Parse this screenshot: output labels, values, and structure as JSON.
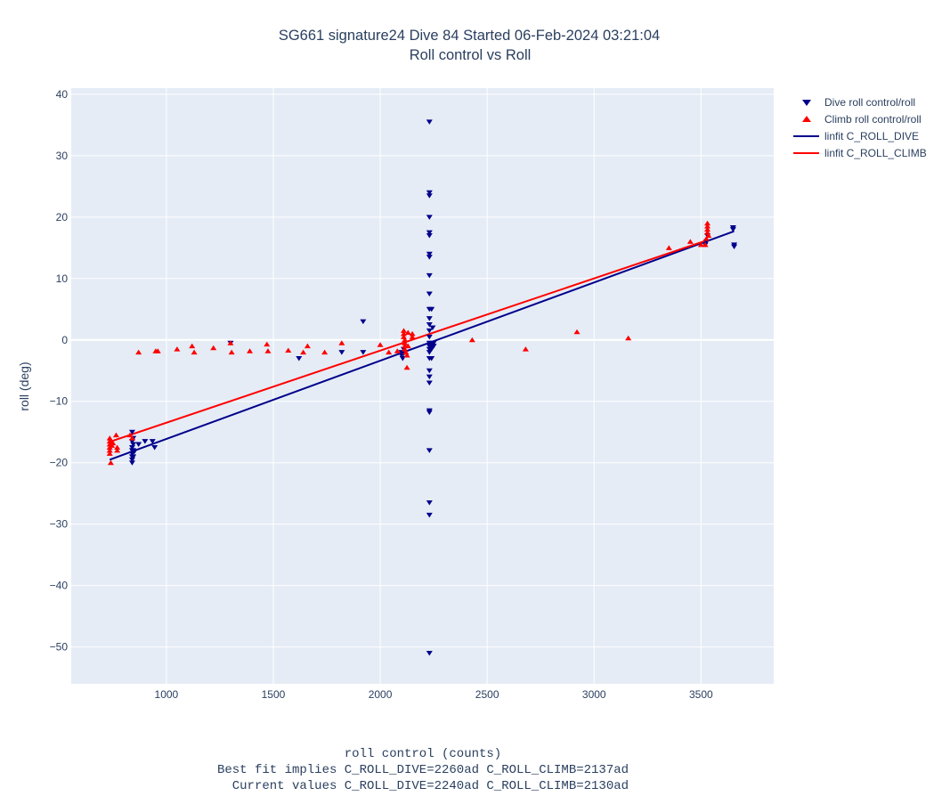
{
  "chart_data": {
    "type": "scatter",
    "title_lines": [
      "SG661 signature24 Dive 84 Started 06-Feb-2024 03:21:04",
      "Roll control vs Roll"
    ],
    "xlabel_lines": [
      "roll control (counts)",
      "Best fit implies C_ROLL_DIVE=2260ad C_ROLL_CLIMB=2137ad",
      "  Current values C_ROLL_DIVE=2240ad C_ROLL_CLIMB=2130ad"
    ],
    "ylabel": "roll (deg)",
    "xlim": [
      555,
      3840
    ],
    "ylim": [
      -56,
      41
    ],
    "xticks": [
      1000,
      1500,
      2000,
      2500,
      3000,
      3500
    ],
    "yticks": [
      40,
      30,
      20,
      10,
      0,
      -10,
      -20,
      -30,
      -40,
      -50
    ],
    "grid": true,
    "legend_position": "top-right-outside",
    "series": [
      {
        "name": "Dive roll control/roll",
        "mode": "markers",
        "marker": "triangle-down",
        "color": "#00008b",
        "points": [
          [
            840,
            -15
          ],
          [
            840,
            -16.5
          ],
          [
            840,
            -17.5
          ],
          [
            840,
            -18
          ],
          [
            840,
            -18.5
          ],
          [
            840,
            -19
          ],
          [
            840,
            -19.5
          ],
          [
            840,
            -20
          ],
          [
            845,
            -16
          ],
          [
            845,
            -17
          ],
          [
            845,
            -18
          ],
          [
            845,
            -19
          ],
          [
            850,
            -18.2
          ],
          [
            870,
            -17
          ],
          [
            900,
            -16.5
          ],
          [
            935,
            -16.5
          ],
          [
            945,
            -17.5
          ],
          [
            1300,
            -0.5
          ],
          [
            1620,
            -3
          ],
          [
            1820,
            -2
          ],
          [
            1920,
            3
          ],
          [
            1920,
            -2
          ],
          [
            2100,
            -2
          ],
          [
            2100,
            -2.5
          ],
          [
            2105,
            -3
          ],
          [
            2110,
            -1.5
          ],
          [
            2110,
            -2.2
          ],
          [
            2230,
            35.5
          ],
          [
            2230,
            24
          ],
          [
            2230,
            23.5
          ],
          [
            2230,
            20
          ],
          [
            2230,
            17.5
          ],
          [
            2230,
            17
          ],
          [
            2230,
            14
          ],
          [
            2230,
            13.5
          ],
          [
            2230,
            10.5
          ],
          [
            2230,
            7.5
          ],
          [
            2230,
            5
          ],
          [
            2230,
            3.5
          ],
          [
            2230,
            2.5
          ],
          [
            2230,
            1.5
          ],
          [
            2230,
            0.5
          ],
          [
            2230,
            -0.5
          ],
          [
            2230,
            -1
          ],
          [
            2230,
            -1.5
          ],
          [
            2230,
            -2
          ],
          [
            2230,
            -3
          ],
          [
            2230,
            -5
          ],
          [
            2230,
            -6
          ],
          [
            2230,
            -7
          ],
          [
            2230,
            -11.5
          ],
          [
            2230,
            -11.8
          ],
          [
            2230,
            -18
          ],
          [
            2230,
            -26.5
          ],
          [
            2230,
            -28.5
          ],
          [
            2230,
            -51
          ],
          [
            2240,
            -1
          ],
          [
            2240,
            -0.5
          ],
          [
            2240,
            -1.5
          ],
          [
            2240,
            -3
          ],
          [
            2240,
            5
          ],
          [
            2245,
            2
          ],
          [
            2250,
            -0.5
          ],
          [
            2250,
            -1
          ],
          [
            3520,
            15.5
          ],
          [
            3525,
            16
          ],
          [
            3530,
            17
          ],
          [
            3650,
            18
          ],
          [
            3650,
            18.3
          ],
          [
            3655,
            15.5
          ],
          [
            3655,
            15.2
          ]
        ]
      },
      {
        "name": "Climb roll control/roll",
        "mode": "markers",
        "marker": "triangle-up",
        "color": "#ff0000",
        "points": [
          [
            735,
            -16
          ],
          [
            735,
            -16.5
          ],
          [
            735,
            -17
          ],
          [
            735,
            -17.5
          ],
          [
            735,
            -18
          ],
          [
            735,
            -18.5
          ],
          [
            740,
            -20
          ],
          [
            745,
            -17.2
          ],
          [
            750,
            -16.8
          ],
          [
            765,
            -15.5
          ],
          [
            770,
            -17.5
          ],
          [
            770,
            -18
          ],
          [
            830,
            -15.5
          ],
          [
            840,
            -16
          ],
          [
            870,
            -2
          ],
          [
            950,
            -1.8
          ],
          [
            960,
            -1.8
          ],
          [
            1050,
            -1.5
          ],
          [
            1120,
            -1
          ],
          [
            1130,
            -2
          ],
          [
            1220,
            -1.3
          ],
          [
            1300,
            -0.5
          ],
          [
            1305,
            -2
          ],
          [
            1390,
            -1.8
          ],
          [
            1470,
            -0.7
          ],
          [
            1475,
            -1.8
          ],
          [
            1570,
            -1.7
          ],
          [
            1640,
            -2
          ],
          [
            1660,
            -1
          ],
          [
            1740,
            -2
          ],
          [
            1820,
            -0.5
          ],
          [
            2000,
            -0.8
          ],
          [
            2040,
            -2
          ],
          [
            2080,
            -1.8
          ],
          [
            2110,
            1.5
          ],
          [
            2110,
            1
          ],
          [
            2110,
            0.5
          ],
          [
            2115,
            0
          ],
          [
            2115,
            -0.5
          ],
          [
            2115,
            -1
          ],
          [
            2115,
            -1.5
          ],
          [
            2120,
            -2
          ],
          [
            2125,
            -2.5
          ],
          [
            2125,
            -4.5
          ],
          [
            2130,
            1.2
          ],
          [
            2130,
            -1
          ],
          [
            2150,
            1
          ],
          [
            2150,
            0.5
          ],
          [
            2430,
            0
          ],
          [
            2680,
            -1.5
          ],
          [
            2920,
            1.3
          ],
          [
            3160,
            0.3
          ],
          [
            3350,
            15
          ],
          [
            3450,
            16
          ],
          [
            3500,
            15.5
          ],
          [
            3520,
            15.5
          ],
          [
            3525,
            16.5
          ],
          [
            3530,
            17.5
          ],
          [
            3530,
            18
          ],
          [
            3530,
            19
          ],
          [
            3530,
            18.5
          ],
          [
            3535,
            17
          ]
        ]
      },
      {
        "name": "linfit C_ROLL_DIVE",
        "mode": "line",
        "color": "#00008b",
        "x": [
          735,
          3655
        ],
        "y": [
          -19.5,
          17.7
        ]
      },
      {
        "name": "linfit C_ROLL_CLIMB",
        "mode": "line",
        "color": "#ff0000",
        "x": [
          735,
          3535
        ],
        "y": [
          -16.6,
          16.3
        ]
      }
    ]
  }
}
